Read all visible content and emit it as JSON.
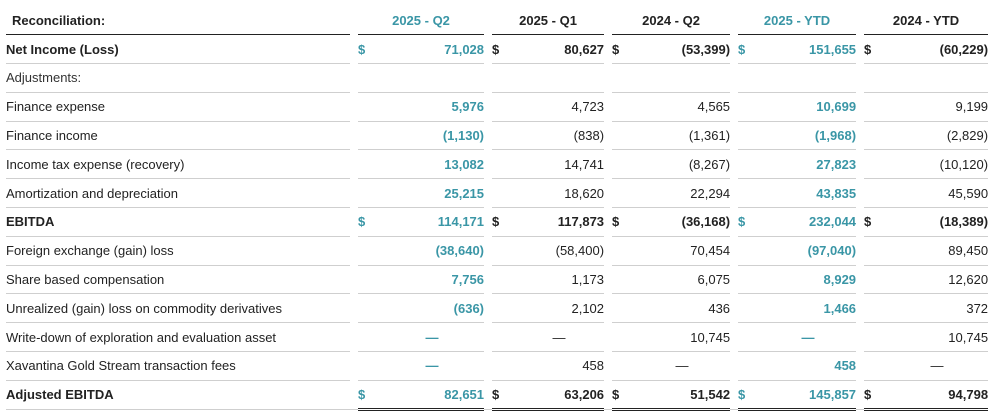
{
  "header": {
    "label": "Reconciliation:",
    "columns": [
      "2025 - Q2",
      "2025 - Q1",
      "2024 - Q2",
      "2025 - YTD",
      "2024 - YTD"
    ]
  },
  "rows": [
    {
      "label": "Net Income (Loss)",
      "currency": "$",
      "values": [
        "71,028",
        "80,627",
        "(53,399)",
        "151,655",
        "(60,229)"
      ]
    },
    {
      "label": "Adjustments:"
    },
    {
      "label": "Finance expense",
      "values": [
        "5,976",
        "4,723",
        "4,565",
        "10,699",
        "9,199"
      ]
    },
    {
      "label": "Finance income",
      "values": [
        "(1,130)",
        "(838)",
        "(1,361)",
        "(1,968)",
        "(2,829)"
      ]
    },
    {
      "label": "Income tax expense (recovery)",
      "values": [
        "13,082",
        "14,741",
        "(8,267)",
        "27,823",
        "(10,120)"
      ]
    },
    {
      "label": "Amortization and depreciation",
      "values": [
        "25,215",
        "18,620",
        "22,294",
        "43,835",
        "45,590"
      ]
    },
    {
      "label": "EBITDA",
      "currency": "$",
      "values": [
        "114,171",
        "117,873",
        "(36,168)",
        "232,044",
        "(18,389)"
      ]
    },
    {
      "label": "Foreign exchange (gain) loss",
      "values": [
        "(38,640)",
        "(58,400)",
        "70,454",
        "(97,040)",
        "89,450"
      ]
    },
    {
      "label": "Share based compensation",
      "values": [
        "7,756",
        "1,173",
        "6,075",
        "8,929",
        "12,620"
      ]
    },
    {
      "label": "Unrealized (gain) loss on commodity derivatives",
      "values": [
        "(636)",
        "2,102",
        "436",
        "1,466",
        "372"
      ]
    },
    {
      "label": "Write-down of exploration and evaluation asset",
      "values": [
        "—",
        "—",
        "10,745",
        "—",
        "10,745"
      ]
    },
    {
      "label": "Xavantina Gold Stream transaction fees",
      "values": [
        "—",
        "458",
        "—",
        "458",
        "—"
      ]
    },
    {
      "label": "Adjusted EBITDA",
      "currency": "$",
      "values": [
        "82,651",
        "63,206",
        "51,542",
        "145,857",
        "94,798"
      ]
    }
  ],
  "colors": {
    "highlight": "#3a96a6",
    "text": "#222222",
    "rule": "#cfcfcf"
  }
}
